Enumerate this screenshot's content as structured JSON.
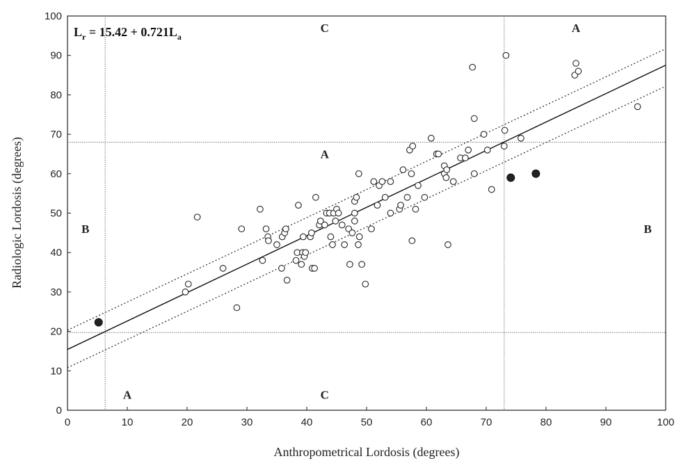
{
  "chart_data": {
    "type": "scatter",
    "title": "",
    "xlabel": "Anthropometrical Lordosis (degrees)",
    "ylabel": "Radiologic Lordosis (degrees)",
    "xlim": [
      0,
      100
    ],
    "ylim": [
      0,
      100
    ],
    "xticks": [
      0,
      10,
      20,
      30,
      40,
      50,
      60,
      70,
      80,
      90,
      100
    ],
    "yticks": [
      0,
      10,
      20,
      30,
      40,
      50,
      60,
      70,
      80,
      90,
      100
    ],
    "equation": {
      "main": "L",
      "sub1": "r",
      "mid": " = 15.42 + 0.721L",
      "sub2": "a"
    },
    "regression": {
      "intercept": 15.42,
      "slope": 0.721,
      "x_range": [
        0,
        100
      ]
    },
    "confidence_lines": [
      {
        "points": [
          [
            0,
            20.3
          ],
          [
            100,
            91.7
          ]
        ]
      },
      {
        "points": [
          [
            0,
            10.8
          ],
          [
            100,
            82.2
          ]
        ]
      }
    ],
    "reference_lines": {
      "vertical": [
        6.3,
        73
      ],
      "horizontal": [
        19.7,
        68
      ]
    },
    "region_labels": [
      {
        "text": "C",
        "x": 43,
        "y": 97
      },
      {
        "text": "A",
        "x": 85,
        "y": 97
      },
      {
        "text": "A",
        "x": 43,
        "y": 65
      },
      {
        "text": "B",
        "x": 3,
        "y": 46
      },
      {
        "text": "B",
        "x": 97,
        "y": 46
      },
      {
        "text": "A",
        "x": 10,
        "y": 4
      },
      {
        "text": "C",
        "x": 43,
        "y": 4
      }
    ],
    "series": [
      {
        "marker": "open-circle",
        "points": [
          [
            19.7,
            30
          ],
          [
            20.2,
            32
          ],
          [
            21.7,
            49
          ],
          [
            26,
            36
          ],
          [
            28.3,
            26
          ],
          [
            29.1,
            46
          ],
          [
            32.2,
            51
          ],
          [
            32.6,
            38
          ],
          [
            33.2,
            46
          ],
          [
            33.5,
            44
          ],
          [
            33.6,
            43
          ],
          [
            35,
            42
          ],
          [
            35.8,
            36
          ],
          [
            35.9,
            44
          ],
          [
            36.3,
            45
          ],
          [
            36.5,
            46
          ],
          [
            36.7,
            33
          ],
          [
            38.2,
            38
          ],
          [
            38.4,
            40
          ],
          [
            38.6,
            52
          ],
          [
            39.1,
            37
          ],
          [
            39.3,
            40
          ],
          [
            39.4,
            44
          ],
          [
            39.6,
            39
          ],
          [
            39.8,
            40
          ],
          [
            40.6,
            44
          ],
          [
            40.8,
            45
          ],
          [
            40.9,
            36
          ],
          [
            41.3,
            36
          ],
          [
            41.5,
            54
          ],
          [
            42.1,
            47
          ],
          [
            42.3,
            48
          ],
          [
            43,
            47
          ],
          [
            43.3,
            50
          ],
          [
            43.8,
            50
          ],
          [
            44,
            44
          ],
          [
            44.3,
            42
          ],
          [
            44.5,
            50
          ],
          [
            44.8,
            48
          ],
          [
            45,
            51
          ],
          [
            45.3,
            50
          ],
          [
            45.9,
            47
          ],
          [
            46.3,
            42
          ],
          [
            47,
            46
          ],
          [
            47.2,
            37
          ],
          [
            47.6,
            45
          ],
          [
            48,
            48
          ],
          [
            48,
            50
          ],
          [
            48,
            53
          ],
          [
            48.3,
            54
          ],
          [
            48.6,
            42
          ],
          [
            48.7,
            60
          ],
          [
            48.8,
            44
          ],
          [
            49.2,
            37
          ],
          [
            49.8,
            32
          ],
          [
            50.8,
            46
          ],
          [
            51.2,
            58
          ],
          [
            51.8,
            52
          ],
          [
            52.1,
            57
          ],
          [
            52.6,
            58
          ],
          [
            53.1,
            54
          ],
          [
            54,
            58
          ],
          [
            54,
            50
          ],
          [
            55.5,
            51
          ],
          [
            55.7,
            52
          ],
          [
            56.1,
            61
          ],
          [
            56.8,
            54
          ],
          [
            57.2,
            66
          ],
          [
            57.5,
            60
          ],
          [
            57.6,
            43
          ],
          [
            57.7,
            67
          ],
          [
            58.2,
            51
          ],
          [
            58.6,
            57
          ],
          [
            59.7,
            54
          ],
          [
            60.8,
            69
          ],
          [
            61.7,
            65
          ],
          [
            62,
            65
          ],
          [
            63,
            62
          ],
          [
            63,
            60
          ],
          [
            63.3,
            59
          ],
          [
            63.4,
            61
          ],
          [
            63.6,
            42
          ],
          [
            64.5,
            58
          ],
          [
            65.7,
            64
          ],
          [
            66.5,
            64
          ],
          [
            67,
            66
          ],
          [
            67.7,
            87
          ],
          [
            68,
            74
          ],
          [
            68,
            60
          ],
          [
            69.6,
            70
          ],
          [
            70.2,
            66
          ],
          [
            70.9,
            56
          ],
          [
            73,
            67
          ],
          [
            73.1,
            71
          ],
          [
            73.3,
            90
          ],
          [
            75.8,
            69
          ],
          [
            84.8,
            85
          ],
          [
            85,
            88
          ],
          [
            85.4,
            86
          ],
          [
            95.3,
            77
          ]
        ]
      },
      {
        "marker": "filled-circle",
        "points": [
          [
            5.2,
            22.3
          ],
          [
            74.1,
            59
          ],
          [
            78.3,
            60
          ]
        ]
      }
    ]
  }
}
